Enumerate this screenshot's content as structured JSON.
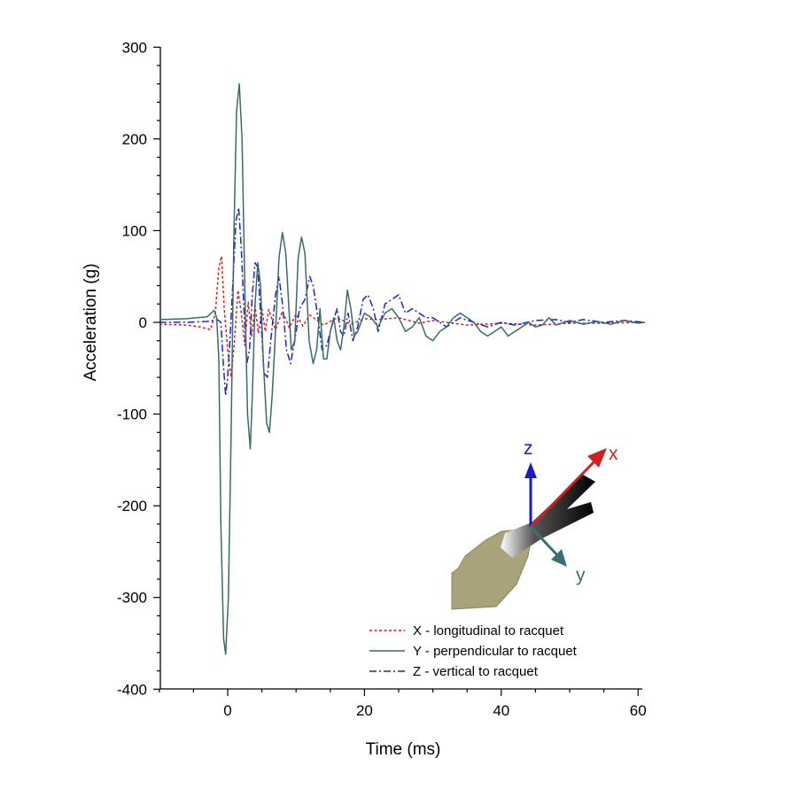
{
  "chart_data": {
    "type": "line",
    "xlabel": "Time (ms)",
    "ylabel": "Acceleration (g)",
    "xlim": [
      -10,
      61
    ],
    "ylim": [
      -400,
      300
    ],
    "x_ticks": [
      0,
      20,
      40,
      60
    ],
    "y_ticks": [
      300,
      200,
      100,
      0,
      -100,
      -200,
      -300,
      -400
    ],
    "grid": false,
    "legend_position": "bottom-right",
    "series": [
      {
        "name": "X - longitudinal to racquet",
        "color": "#cc2222",
        "style": "dashed",
        "points": [
          [
            -10,
            -2
          ],
          [
            -6,
            -3
          ],
          [
            -4,
            -5
          ],
          [
            -2.5,
            -8
          ],
          [
            -1.8,
            10
          ],
          [
            -1.3,
            60
          ],
          [
            -0.9,
            72
          ],
          [
            -0.5,
            15
          ],
          [
            0,
            -30
          ],
          [
            0.5,
            -60
          ],
          [
            1,
            -20
          ],
          [
            1.5,
            35
          ],
          [
            2,
            10
          ],
          [
            2.5,
            -25
          ],
          [
            3,
            22
          ],
          [
            3.5,
            -15
          ],
          [
            4,
            18
          ],
          [
            4.5,
            -12
          ],
          [
            5,
            15
          ],
          [
            5.5,
            -10
          ],
          [
            6,
            14
          ],
          [
            7,
            -8
          ],
          [
            8,
            12
          ],
          [
            9,
            -6
          ],
          [
            10,
            9
          ],
          [
            11,
            -4
          ],
          [
            12,
            8
          ],
          [
            14,
            -3
          ],
          [
            16,
            5
          ],
          [
            18,
            -2
          ],
          [
            20,
            4
          ],
          [
            22,
            3
          ],
          [
            25,
            5
          ],
          [
            28,
            -1
          ],
          [
            30,
            2
          ],
          [
            35,
            -3
          ],
          [
            40,
            -1
          ],
          [
            45,
            -3
          ],
          [
            50,
            -1
          ],
          [
            55,
            -1
          ],
          [
            60,
            0
          ],
          [
            61,
            0
          ]
        ]
      },
      {
        "name": "Y - perpendicular to racquet",
        "color": "#3a6a6a",
        "style": "solid",
        "points": [
          [
            -10,
            3
          ],
          [
            -6,
            4
          ],
          [
            -3,
            6
          ],
          [
            -2,
            13
          ],
          [
            -1.6,
            5
          ],
          [
            -1.3,
            -40
          ],
          [
            -1,
            -220
          ],
          [
            -0.6,
            -345
          ],
          [
            -0.3,
            -362
          ],
          [
            0.1,
            -300
          ],
          [
            0.5,
            -120
          ],
          [
            0.9,
            90
          ],
          [
            1.3,
            230
          ],
          [
            1.7,
            260
          ],
          [
            2.1,
            200
          ],
          [
            2.5,
            40
          ],
          [
            2.9,
            -100
          ],
          [
            3.3,
            -138
          ],
          [
            3.6,
            -80
          ],
          [
            4,
            20
          ],
          [
            4.4,
            65
          ],
          [
            4.8,
            40
          ],
          [
            5.2,
            -40
          ],
          [
            5.7,
            -110
          ],
          [
            6.1,
            -120
          ],
          [
            6.5,
            -80
          ],
          [
            7,
            -10
          ],
          [
            7.5,
            70
          ],
          [
            8,
            98
          ],
          [
            8.5,
            75
          ],
          [
            9.3,
            -30
          ],
          [
            9.8,
            -20
          ],
          [
            10.3,
            70
          ],
          [
            10.8,
            93
          ],
          [
            11.3,
            75
          ],
          [
            11.9,
            -20
          ],
          [
            12.5,
            -45
          ],
          [
            13,
            -30
          ],
          [
            13.5,
            15
          ],
          [
            14,
            -40
          ],
          [
            14.5,
            -40
          ],
          [
            15,
            -10
          ],
          [
            15.5,
            5
          ],
          [
            16,
            -20
          ],
          [
            16.5,
            -30
          ],
          [
            17,
            -5
          ],
          [
            17.5,
            35
          ],
          [
            18,
            15
          ],
          [
            18.5,
            -15
          ],
          [
            19,
            -10
          ],
          [
            20,
            10
          ],
          [
            21,
            5
          ],
          [
            22,
            -5
          ],
          [
            23,
            10
          ],
          [
            24,
            15
          ],
          [
            25,
            5
          ],
          [
            26,
            -10
          ],
          [
            27,
            -5
          ],
          [
            28,
            5
          ],
          [
            29,
            -15
          ],
          [
            30,
            -20
          ],
          [
            31,
            -10
          ],
          [
            32,
            -5
          ],
          [
            33,
            5
          ],
          [
            34,
            10
          ],
          [
            35,
            5
          ],
          [
            36,
            0
          ],
          [
            37,
            -10
          ],
          [
            38,
            -15
          ],
          [
            39,
            -10
          ],
          [
            40,
            -5
          ],
          [
            41,
            -15
          ],
          [
            42,
            -10
          ],
          [
            43,
            -5
          ],
          [
            44,
            0
          ],
          [
            45,
            -5
          ],
          [
            46,
            -3
          ],
          [
            47,
            5
          ],
          [
            48,
            -3
          ],
          [
            50,
            2
          ],
          [
            52,
            -2
          ],
          [
            54,
            1
          ],
          [
            56,
            -2
          ],
          [
            58,
            2
          ],
          [
            60,
            -1
          ],
          [
            61,
            0
          ]
        ]
      },
      {
        "name": "Z - vertical to racquet",
        "color": "#2222cc",
        "style": "dashdot",
        "points": [
          [
            -10,
            0
          ],
          [
            -6,
            0
          ],
          [
            -3,
            1
          ],
          [
            -1.5,
            3
          ],
          [
            -1,
            0
          ],
          [
            -0.6,
            -50
          ],
          [
            -0.3,
            -80
          ],
          [
            0,
            -60
          ],
          [
            0.4,
            -10
          ],
          [
            0.8,
            50
          ],
          [
            1.2,
            110
          ],
          [
            1.6,
            125
          ],
          [
            2,
            80
          ],
          [
            2.4,
            10
          ],
          [
            2.8,
            -45
          ],
          [
            3.2,
            -30
          ],
          [
            3.6,
            30
          ],
          [
            4,
            65
          ],
          [
            4.4,
            60
          ],
          [
            4.8,
            10
          ],
          [
            5.3,
            -55
          ],
          [
            5.8,
            -60
          ],
          [
            6.3,
            -20
          ],
          [
            7,
            30
          ],
          [
            7.5,
            50
          ],
          [
            8,
            20
          ],
          [
            8.6,
            -30
          ],
          [
            9.2,
            -45
          ],
          [
            9.8,
            -20
          ],
          [
            10.5,
            15
          ],
          [
            11.3,
            25
          ],
          [
            12,
            50
          ],
          [
            12.5,
            40
          ],
          [
            13.2,
            5
          ],
          [
            13.8,
            -30
          ],
          [
            14.5,
            -25
          ],
          [
            15.2,
            -5
          ],
          [
            16,
            15
          ],
          [
            16.5,
            -10
          ],
          [
            17,
            -15
          ],
          [
            17.6,
            10
          ],
          [
            18.3,
            -20
          ],
          [
            19,
            -5
          ],
          [
            19.8,
            25
          ],
          [
            20.5,
            30
          ],
          [
            21.3,
            15
          ],
          [
            22,
            -10
          ],
          [
            23,
            20
          ],
          [
            24,
            25
          ],
          [
            25,
            30
          ],
          [
            26,
            10
          ],
          [
            27,
            15
          ],
          [
            28,
            10
          ],
          [
            29,
            5
          ],
          [
            30,
            5
          ],
          [
            31,
            0
          ],
          [
            32,
            -5
          ],
          [
            34,
            5
          ],
          [
            36,
            0
          ],
          [
            38,
            -5
          ],
          [
            40,
            0
          ],
          [
            42,
            -3
          ],
          [
            45,
            2
          ],
          [
            48,
            3
          ],
          [
            50,
            0
          ],
          [
            52,
            3
          ],
          [
            55,
            0
          ],
          [
            58,
            2
          ],
          [
            61,
            0
          ]
        ]
      }
    ]
  },
  "inset": {
    "axis_labels": {
      "x": "x",
      "y": "y",
      "z": "z"
    },
    "colors": {
      "x": "#cc2222",
      "y": "#3a7070",
      "z": "#1a1acc",
      "hand": "#a8a37a"
    },
    "icons": [
      "hand-icon",
      "racquet-handle-icon"
    ]
  }
}
